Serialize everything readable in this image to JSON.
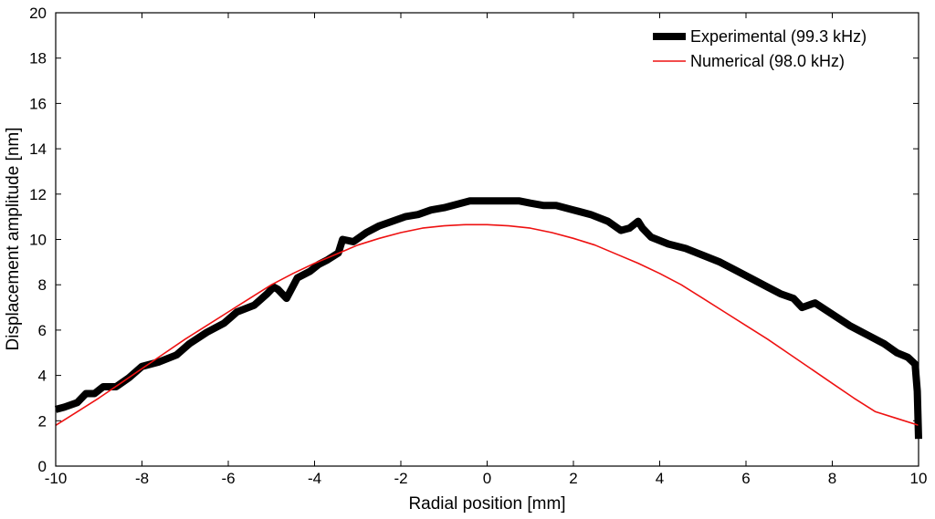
{
  "chart_data": {
    "type": "line",
    "xlabel": "Radial position [mm]",
    "ylabel": "Displacement amplitude [nm]",
    "xlim": [
      -10,
      10
    ],
    "ylim": [
      0,
      20
    ],
    "xticks": [
      -10,
      -8,
      -6,
      -4,
      -2,
      0,
      2,
      4,
      6,
      8,
      10
    ],
    "yticks": [
      0,
      2,
      4,
      6,
      8,
      10,
      12,
      14,
      16,
      18,
      20
    ],
    "legend_position": "top-right",
    "series": [
      {
        "name": "Experimental (99.3 kHz)",
        "color": "#000000",
        "style": "thick",
        "x": [
          -10,
          -9.8,
          -9.5,
          -9.3,
          -9.1,
          -8.9,
          -8.6,
          -8.3,
          -8.0,
          -7.6,
          -7.2,
          -6.9,
          -6.5,
          -6.1,
          -5.8,
          -5.4,
          -5.1,
          -4.95,
          -4.85,
          -4.65,
          -4.4,
          -4.1,
          -3.9,
          -3.7,
          -3.45,
          -3.35,
          -3.1,
          -2.8,
          -2.5,
          -2.2,
          -1.9,
          -1.6,
          -1.3,
          -1.0,
          -0.6,
          -0.4,
          -0.1,
          0.2,
          0.5,
          0.75,
          1.0,
          1.3,
          1.6,
          2.0,
          2.4,
          2.8,
          3.1,
          3.3,
          3.5,
          3.6,
          3.8,
          4.2,
          4.6,
          5.0,
          5.4,
          5.8,
          6.2,
          6.5,
          6.8,
          7.1,
          7.3,
          7.6,
          8.0,
          8.4,
          8.6,
          8.8,
          9.2,
          9.5,
          9.75,
          9.92,
          9.97,
          10.0
        ],
        "values": [
          2.5,
          2.6,
          2.8,
          3.2,
          3.2,
          3.5,
          3.5,
          3.9,
          4.4,
          4.6,
          4.9,
          5.4,
          5.9,
          6.3,
          6.8,
          7.1,
          7.6,
          7.9,
          7.8,
          7.4,
          8.3,
          8.6,
          8.9,
          9.1,
          9.4,
          10.0,
          9.9,
          10.3,
          10.6,
          10.8,
          11.0,
          11.1,
          11.3,
          11.4,
          11.6,
          11.7,
          11.7,
          11.7,
          11.7,
          11.7,
          11.6,
          11.5,
          11.5,
          11.3,
          11.1,
          10.8,
          10.4,
          10.5,
          10.8,
          10.5,
          10.1,
          9.8,
          9.6,
          9.3,
          9.0,
          8.6,
          8.2,
          7.9,
          7.6,
          7.4,
          7.0,
          7.2,
          6.7,
          6.2,
          6.0,
          5.8,
          5.4,
          5.0,
          4.8,
          4.5,
          3.3,
          1.2
        ]
      },
      {
        "name": "Numerical (98.0 kHz)",
        "color": "#ee1111",
        "style": "thin",
        "x": [
          -10,
          -9.5,
          -9,
          -8.5,
          -8,
          -7.5,
          -7,
          -6.5,
          -6,
          -5.5,
          -5,
          -4.5,
          -4,
          -3.5,
          -3,
          -2.5,
          -2,
          -1.5,
          -1,
          -0.5,
          0,
          0.5,
          1,
          1.5,
          2,
          2.5,
          3,
          3.5,
          4,
          4.5,
          5,
          5.5,
          6,
          6.5,
          7,
          7.5,
          8,
          8.5,
          9,
          9.5,
          10
        ],
        "values": [
          1.8,
          2.4,
          3.0,
          3.65,
          4.3,
          4.95,
          5.6,
          6.2,
          6.8,
          7.4,
          8.0,
          8.5,
          8.95,
          9.35,
          9.75,
          10.05,
          10.3,
          10.5,
          10.6,
          10.65,
          10.65,
          10.6,
          10.5,
          10.3,
          10.05,
          9.75,
          9.35,
          8.95,
          8.5,
          8.0,
          7.4,
          6.8,
          6.2,
          5.6,
          4.95,
          4.3,
          3.65,
          3.0,
          2.4,
          2.1,
          1.8
        ]
      }
    ]
  }
}
